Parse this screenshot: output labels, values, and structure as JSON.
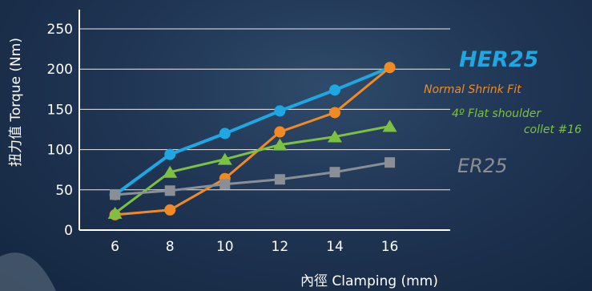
{
  "chart_data": {
    "type": "line",
    "xlabel": "內徑 Clamping (mm)",
    "ylabel": "扭力值 Torque (Nm)",
    "x": [
      6,
      8,
      10,
      12,
      14,
      16
    ],
    "xlim": [
      4.7,
      18.2
    ],
    "ylim": [
      0,
      260
    ],
    "yticks": [
      0,
      50,
      100,
      150,
      200,
      250
    ],
    "grid": true,
    "series": [
      {
        "name": "HER25",
        "color": "#1ea7e1",
        "marker": "circle",
        "values": [
          44,
          94,
          120,
          148,
          174,
          202
        ]
      },
      {
        "name": "Normal Shrink Fit",
        "color": "#f28a24",
        "marker": "circle",
        "values": [
          19,
          25,
          64,
          122,
          146,
          202
        ]
      },
      {
        "name": "4º Flat shoulder collet #16",
        "label_lines": [
          "4º Flat shoulder",
          "collet #16"
        ],
        "color": "#7dc142",
        "marker": "triangle",
        "values": [
          21,
          72,
          88,
          106,
          116,
          129
        ]
      },
      {
        "name": "ER25",
        "color": "#8a8f96",
        "marker": "square",
        "values": [
          44,
          49,
          57,
          63,
          72,
          84
        ]
      }
    ]
  }
}
